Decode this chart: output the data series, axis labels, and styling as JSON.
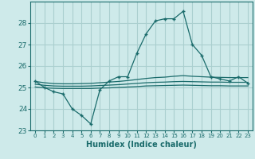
{
  "xlabel": "Humidex (Indice chaleur)",
  "ylabel": "",
  "background_color": "#ceeaea",
  "grid_color": "#aacfcf",
  "line_color": "#1a6b6b",
  "xlim": [
    -0.5,
    23.5
  ],
  "ylim": [
    23,
    29
  ],
  "yticks": [
    23,
    24,
    25,
    26,
    27,
    28
  ],
  "xticks": [
    0,
    1,
    2,
    3,
    4,
    5,
    6,
    7,
    8,
    9,
    10,
    11,
    12,
    13,
    14,
    15,
    16,
    17,
    18,
    19,
    20,
    21,
    22,
    23
  ],
  "series": {
    "main": [
      25.3,
      25.0,
      24.8,
      24.7,
      24.0,
      23.7,
      23.3,
      24.9,
      25.3,
      25.5,
      25.5,
      26.6,
      27.5,
      28.1,
      28.2,
      28.2,
      28.55,
      27.0,
      26.5,
      25.5,
      25.4,
      25.3,
      25.5,
      25.2
    ],
    "upper": [
      25.28,
      25.22,
      25.18,
      25.17,
      25.17,
      25.18,
      25.19,
      25.22,
      25.25,
      25.28,
      25.32,
      25.37,
      25.42,
      25.46,
      25.48,
      25.52,
      25.55,
      25.52,
      25.5,
      25.48,
      25.47,
      25.46,
      25.46,
      25.46
    ],
    "mid": [
      25.15,
      25.1,
      25.07,
      25.06,
      25.06,
      25.06,
      25.07,
      25.09,
      25.11,
      25.13,
      25.16,
      25.19,
      25.22,
      25.24,
      25.25,
      25.27,
      25.28,
      25.27,
      25.26,
      25.25,
      25.25,
      25.24,
      25.24,
      25.24
    ],
    "lower": [
      25.02,
      24.98,
      24.96,
      24.95,
      24.95,
      24.95,
      24.95,
      24.97,
      24.98,
      25.0,
      25.02,
      25.04,
      25.07,
      25.08,
      25.09,
      25.1,
      25.11,
      25.1,
      25.09,
      25.08,
      25.08,
      25.07,
      25.07,
      25.07
    ]
  }
}
